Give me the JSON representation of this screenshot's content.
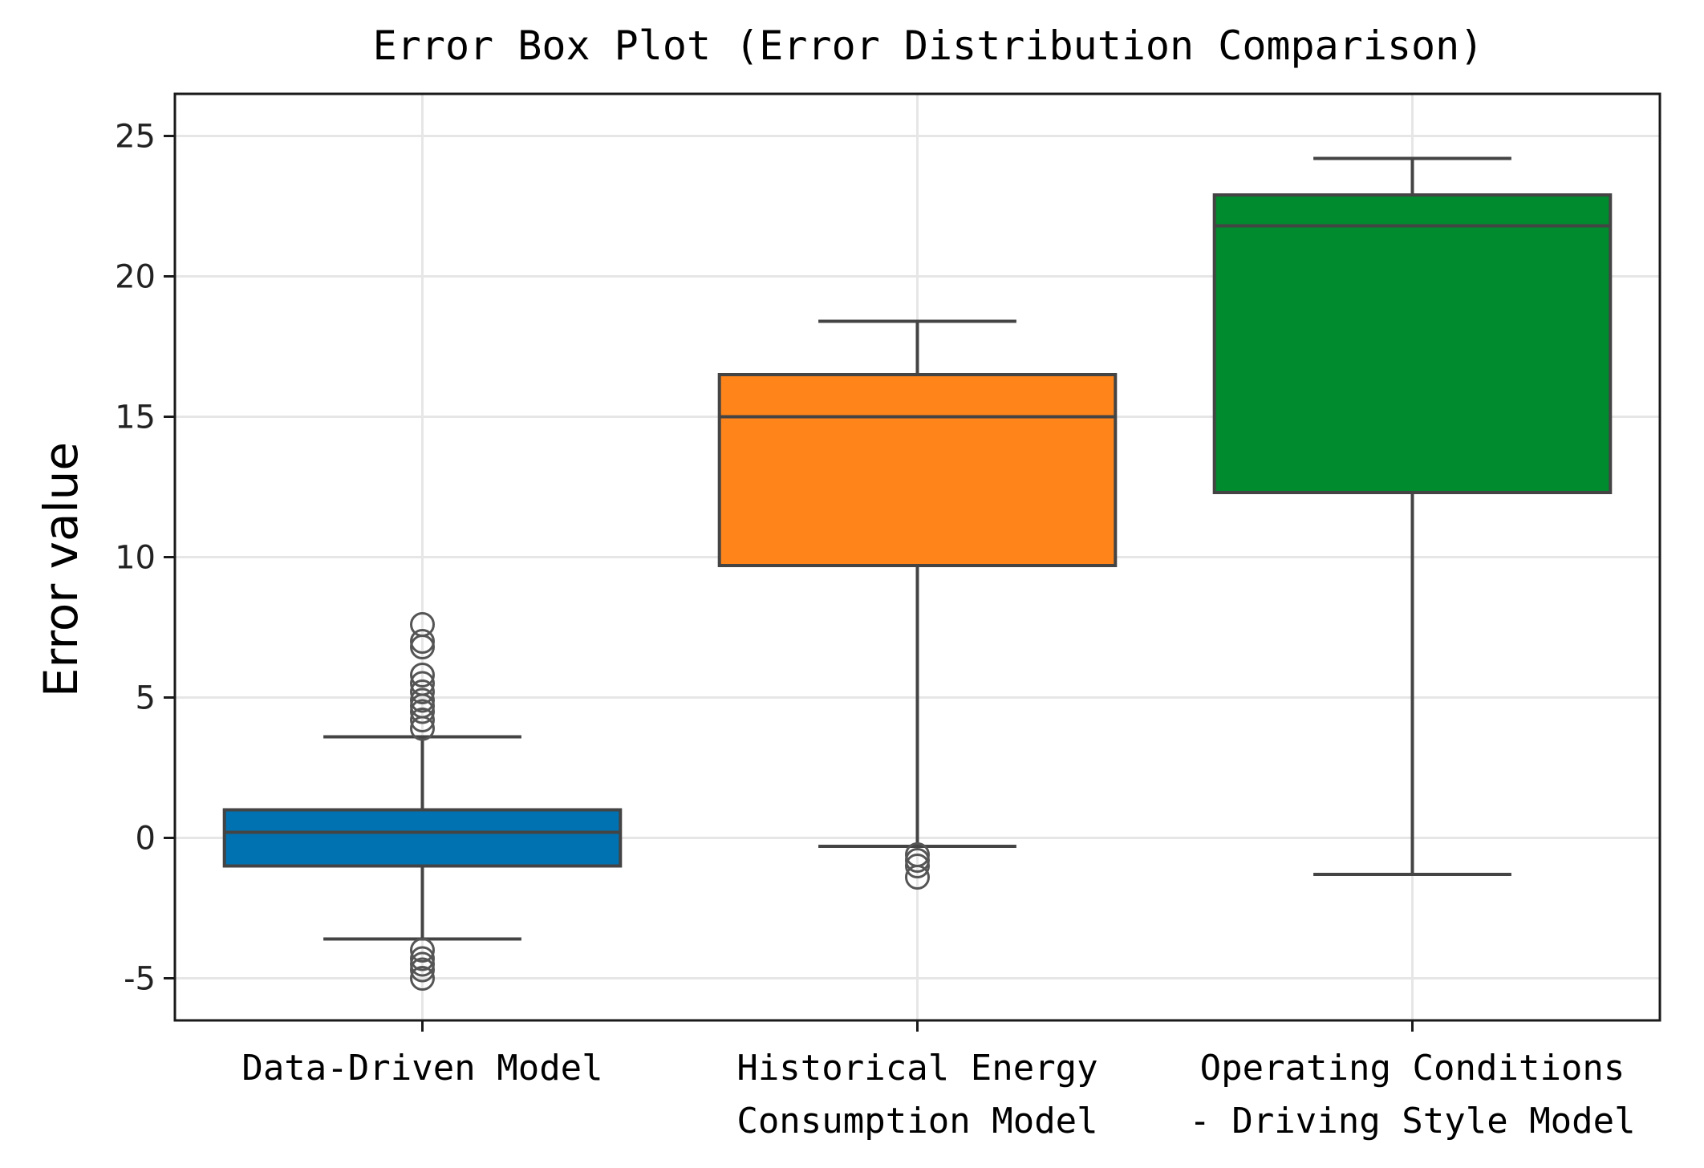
{
  "chart_data": {
    "type": "box",
    "title": "Error Box Plot (Error Distribution Comparison)",
    "xlabel": "",
    "ylabel": "Error value",
    "ylim": [
      -6.5,
      26.5
    ],
    "yticks": [
      -5,
      0,
      5,
      10,
      15,
      20,
      25
    ],
    "ytick_labels": [
      "-5",
      "0",
      "5",
      "10",
      "15",
      "20",
      "25"
    ],
    "grid": true,
    "categories": [
      [
        "Data-Driven Model"
      ],
      [
        "Historical Energy",
        "Consumption Model"
      ],
      [
        "Operating Conditions",
        "- Driving Style Model"
      ]
    ],
    "boxes": [
      {
        "name": "Data-Driven Model",
        "color": "#0072B2",
        "whisker_low": -3.6,
        "q1": -1.0,
        "median": 0.2,
        "q3": 1.0,
        "whisker_high": 3.6,
        "outliers": [
          7.6,
          7.0,
          6.8,
          5.8,
          5.5,
          5.2,
          4.9,
          4.7,
          4.5,
          4.2,
          3.9,
          -4.0,
          -4.3,
          -4.5,
          -4.7,
          -5.0
        ]
      },
      {
        "name": "Historical Energy Consumption Model",
        "color": "#FF851B",
        "whisker_low": -0.3,
        "q1": 9.7,
        "median": 15.0,
        "q3": 16.5,
        "whisker_high": 18.4,
        "outliers": [
          -0.6,
          -0.8,
          -1.0,
          -1.4
        ]
      },
      {
        "name": "Operating Conditions - Driving Style Model",
        "color": "#008C2E",
        "whisker_low": -1.3,
        "q1": 12.3,
        "median": 21.8,
        "q3": 22.9,
        "whisker_high": 24.2,
        "outliers": []
      }
    ]
  }
}
